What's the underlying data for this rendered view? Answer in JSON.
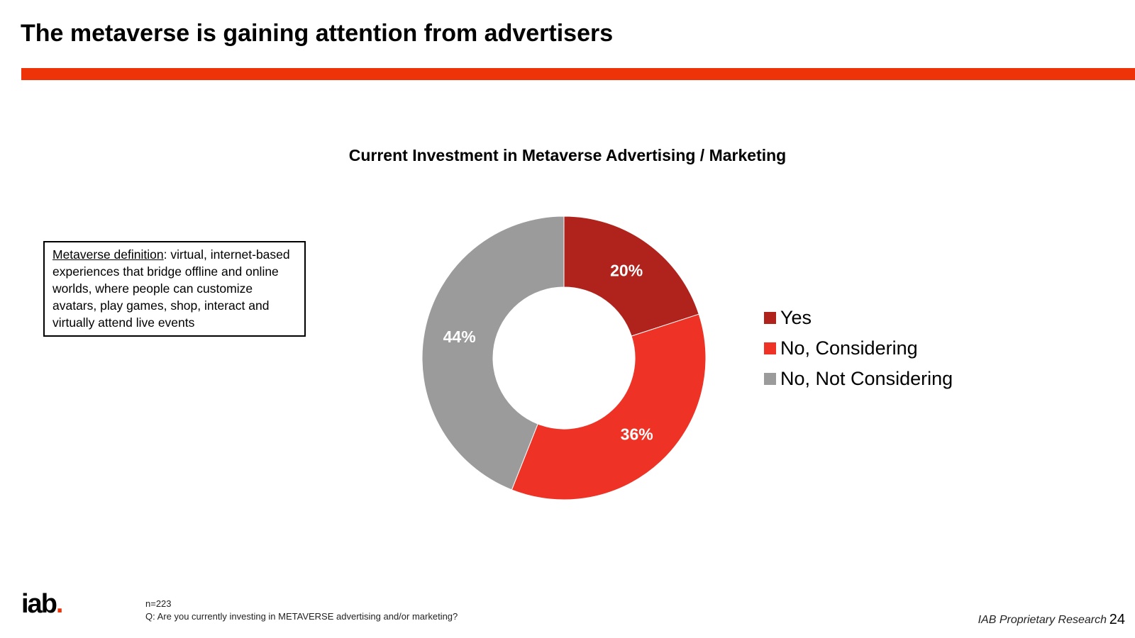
{
  "slide": {
    "title": "The metaverse is gaining attention from advertisers",
    "accent_color": "#ee3308"
  },
  "definition": {
    "term": "Metaverse definition",
    "text": ": virtual, internet-based experiences that bridge offline and online worlds, where people can customize avatars, play games, shop, interact and virtually attend live events"
  },
  "chart_data": {
    "type": "pie",
    "variant": "donut",
    "title": "Current Investment in Metaverse Advertising / Marketing",
    "categories": [
      "Yes",
      "No, Considering",
      "No, Not Considering"
    ],
    "values": [
      20,
      36,
      44
    ],
    "labels": [
      "20%",
      "36%",
      "44%"
    ],
    "colors": [
      "#b0231c",
      "#ee3326",
      "#9b9b9b"
    ],
    "legend_position": "right"
  },
  "footer": {
    "logo_text": "iab",
    "logo_dot": ".",
    "n_text": "n=223",
    "question": "Q: Are you currently investing in METAVERSE advertising and/or marketing?",
    "source": "IAB Proprietary Research",
    "page_number": "24"
  }
}
